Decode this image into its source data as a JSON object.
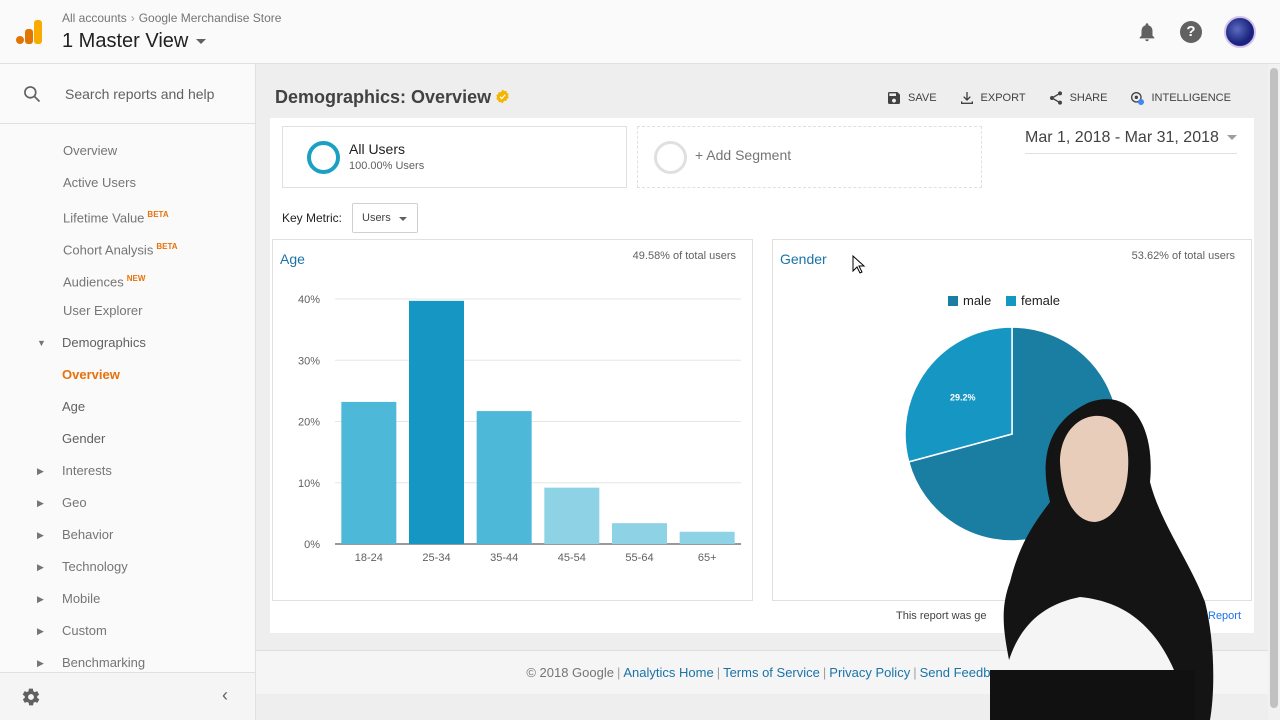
{
  "header": {
    "breadcrumb": [
      "All accounts",
      "Google Merchandise Store"
    ],
    "view_name": "1 Master View"
  },
  "sidebar": {
    "search_placeholder": "Search reports and help",
    "items": [
      {
        "label": "Overview",
        "level": 2
      },
      {
        "label": "Active Users",
        "level": 2
      },
      {
        "label": "Lifetime Value",
        "badge": "BETA",
        "level": 2
      },
      {
        "label": "Cohort Analysis",
        "badge": "BETA",
        "level": 2
      },
      {
        "label": "Audiences",
        "badge": "NEW",
        "level": 2
      },
      {
        "label": "User Explorer",
        "level": 2
      },
      {
        "label": "Demographics",
        "expanded": true
      },
      {
        "label": "Overview",
        "active": true
      },
      {
        "label": "Age"
      },
      {
        "label": "Gender"
      },
      {
        "label": "Interests"
      },
      {
        "label": "Geo"
      },
      {
        "label": "Behavior"
      },
      {
        "label": "Technology"
      },
      {
        "label": "Mobile"
      },
      {
        "label": "Custom"
      },
      {
        "label": "Benchmarking"
      }
    ]
  },
  "page": {
    "title": "Demographics: Overview",
    "actions": {
      "save": "SAVE",
      "export": "EXPORT",
      "share": "SHARE",
      "intelligence": "INTELLIGENCE"
    },
    "segment": {
      "name": "All Users",
      "pct": "100.00% Users"
    },
    "add_segment": "+ Add Segment",
    "date_range": "Mar 1, 2018 - Mar 31, 2018",
    "key_metric_label": "Key Metric:",
    "key_metric_value": "Users",
    "footnote": "This report was ge",
    "footnote_link": "Report"
  },
  "age_card": {
    "title": "Age",
    "meta": "49.58% of total users"
  },
  "gender_card": {
    "title": "Gender",
    "meta": "53.62% of total users"
  },
  "chart_data": [
    {
      "type": "bar",
      "title": "Age",
      "categories": [
        "18-24",
        "25-34",
        "35-44",
        "45-54",
        "55-64",
        "65+"
      ],
      "values": [
        23.2,
        39.7,
        21.7,
        9.2,
        3.4,
        2.0
      ],
      "ylim": [
        0,
        40
      ],
      "yticks": [
        "0%",
        "10%",
        "20%",
        "30%",
        "40%"
      ],
      "colors": [
        "#4db8d8",
        "#1596c3",
        "#4db8d8",
        "#8ed2e6",
        "#8ed2e6",
        "#8ed2e6"
      ]
    },
    {
      "type": "pie",
      "title": "Gender",
      "labels": [
        "male",
        "female"
      ],
      "values": [
        70.8,
        29.2
      ],
      "data_labels": [
        "",
        "29.2%"
      ],
      "colors": [
        "#1a7da2",
        "#1596c3"
      ]
    }
  ],
  "footer": {
    "copyright": "© 2018 Google",
    "links": [
      "Analytics Home",
      "Terms of Service",
      "Privacy Policy",
      "Send Feedba"
    ]
  }
}
